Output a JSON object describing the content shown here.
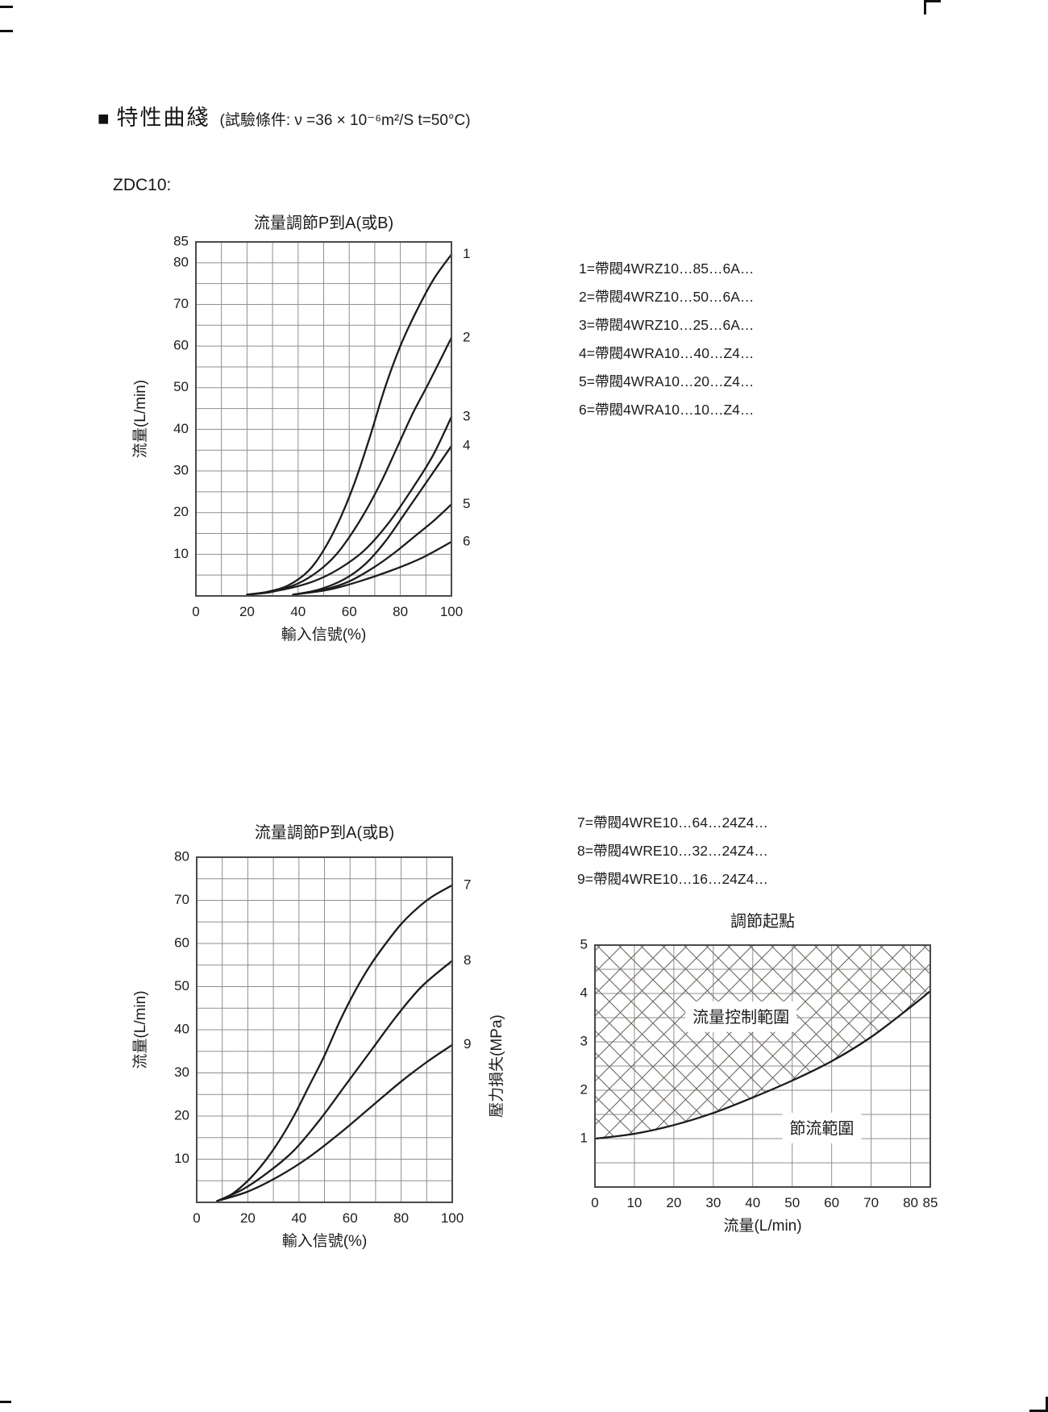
{
  "page": {
    "header": {
      "marker": "■",
      "title": "特性曲綫",
      "condition": "(試驗條件: ν =36 × 10⁻⁶m²/S   t=50°C)"
    },
    "model_label": "ZDC10:"
  },
  "colors": {
    "curve": "#1c1c1c",
    "grid": "#8f8f8f",
    "axis": "#4a4a4a",
    "hatch": "#6e665e",
    "annotation_bg": "#ffffff"
  },
  "legends": {
    "group1": [
      "1=帶閥4WRZ10…85…6A…",
      "2=帶閥4WRZ10…50…6A…",
      "3=帶閥4WRZ10…25…6A…",
      "4=帶閥4WRA10…40…Z4…",
      "5=帶閥4WRA10…20…Z4…",
      "6=帶閥4WRA10…10…Z4…"
    ],
    "group2": [
      "7=帶閥4WRE10…64…24Z4…",
      "8=帶閥4WRE10…32…24Z4…",
      "9=帶閥4WRE10…16…24Z4…"
    ]
  },
  "chart_data": [
    {
      "id": "flow-adjust-1",
      "type": "line",
      "title": "流量調節P到A(或B)",
      "xlabel": "輸入信號(%)",
      "ylabel": "流量(L/min)",
      "xlim": [
        0,
        100
      ],
      "ylim": [
        0,
        85
      ],
      "x_ticks": [
        0,
        20,
        40,
        60,
        80,
        100
      ],
      "y_ticks": [
        10,
        20,
        30,
        40,
        50,
        60,
        70,
        80,
        85
      ],
      "x_grid_step": 10,
      "y_grid_step": 5,
      "grid": true,
      "series": [
        {
          "name": "1",
          "values": [
            [
              20,
              0.3
            ],
            [
              28,
              1
            ],
            [
              36,
              2.5
            ],
            [
              44,
              6
            ],
            [
              50,
              11
            ],
            [
              56,
              18
            ],
            [
              62,
              27
            ],
            [
              68,
              38
            ],
            [
              74,
              50
            ],
            [
              80,
              60
            ],
            [
              86,
              68
            ],
            [
              93,
              76
            ],
            [
              100,
              82
            ]
          ]
        },
        {
          "name": "2",
          "values": [
            [
              20,
              0.3
            ],
            [
              30,
              1
            ],
            [
              40,
              3
            ],
            [
              48,
              6
            ],
            [
              55,
              10
            ],
            [
              61,
              15
            ],
            [
              67,
              21
            ],
            [
              73,
              28
            ],
            [
              79,
              36
            ],
            [
              85,
              44
            ],
            [
              91,
              51
            ],
            [
              100,
              62
            ]
          ]
        },
        {
          "name": "3",
          "values": [
            [
              20,
              0.3
            ],
            [
              34,
              1.5
            ],
            [
              46,
              3.5
            ],
            [
              56,
              6.5
            ],
            [
              66,
              11
            ],
            [
              76,
              18
            ],
            [
              86,
              27
            ],
            [
              93,
              34
            ],
            [
              100,
              43
            ]
          ]
        },
        {
          "name": "4",
          "values": [
            [
              38,
              0.3
            ],
            [
              48,
              1.5
            ],
            [
              58,
              4
            ],
            [
              66,
              7.5
            ],
            [
              74,
              13
            ],
            [
              82,
              20
            ],
            [
              91,
              28
            ],
            [
              100,
              36
            ]
          ]
        },
        {
          "name": "5",
          "values": [
            [
              38,
              0.3
            ],
            [
              50,
              1.5
            ],
            [
              60,
              3.5
            ],
            [
              70,
              7
            ],
            [
              78,
              10.5
            ],
            [
              86,
              14.5
            ],
            [
              93,
              18
            ],
            [
              100,
              22
            ]
          ]
        },
        {
          "name": "6",
          "values": [
            [
              38,
              0.3
            ],
            [
              52,
              1.5
            ],
            [
              64,
              3.5
            ],
            [
              76,
              6
            ],
            [
              88,
              9
            ],
            [
              100,
              13
            ]
          ]
        }
      ]
    },
    {
      "id": "flow-adjust-2",
      "type": "line",
      "title": "流量調節P到A(或B)",
      "xlabel": "輸入信號(%)",
      "ylabel": "流量(L/min)",
      "xlim": [
        0,
        100
      ],
      "ylim": [
        0,
        80
      ],
      "x_ticks": [
        0,
        20,
        40,
        60,
        80,
        100
      ],
      "y_ticks": [
        10,
        20,
        30,
        40,
        50,
        60,
        70,
        80
      ],
      "x_grid_step": 10,
      "y_grid_step": 5,
      "grid": true,
      "series": [
        {
          "name": "7",
          "values": [
            [
              8,
              0.3
            ],
            [
              14,
              2
            ],
            [
              20,
              5
            ],
            [
              26,
              9
            ],
            [
              32,
              14
            ],
            [
              38,
              20
            ],
            [
              44,
              27
            ],
            [
              50,
              34
            ],
            [
              56,
              42
            ],
            [
              62,
              49
            ],
            [
              68,
              55
            ],
            [
              74,
              60
            ],
            [
              80,
              64.5
            ],
            [
              86,
              68
            ],
            [
              92,
              70.8
            ],
            [
              100,
              73.5
            ]
          ]
        },
        {
          "name": "8",
          "values": [
            [
              8,
              0.3
            ],
            [
              18,
              3
            ],
            [
              28,
              7
            ],
            [
              38,
              12
            ],
            [
              48,
              19
            ],
            [
              58,
              27
            ],
            [
              68,
              35
            ],
            [
              78,
              43
            ],
            [
              88,
              50
            ],
            [
              100,
              56
            ]
          ]
        },
        {
          "name": "9",
          "values": [
            [
              8,
              0.3
            ],
            [
              20,
              2.5
            ],
            [
              32,
              6
            ],
            [
              44,
              10.5
            ],
            [
              56,
              16
            ],
            [
              68,
              22
            ],
            [
              80,
              28
            ],
            [
              90,
              32.5
            ],
            [
              100,
              36.5
            ]
          ]
        }
      ]
    },
    {
      "id": "adjust-start",
      "type": "area",
      "title": "調節起點",
      "xlabel": "流量(L/min)",
      "ylabel": "壓力損失(MPa)",
      "xlim": [
        0,
        85
      ],
      "ylim": [
        0,
        5
      ],
      "x_ticks": [
        0,
        10,
        20,
        30,
        40,
        50,
        60,
        70,
        80,
        85
      ],
      "y_ticks": [
        1,
        2,
        3,
        4,
        5
      ],
      "x_grid_step": 10,
      "y_grid_step": 0.5,
      "grid": true,
      "hatch_region": "above-curve",
      "series": [
        {
          "name": "",
          "show_label": false,
          "values": [
            [
              0,
              1
            ],
            [
              10,
              1.1
            ],
            [
              20,
              1.28
            ],
            [
              30,
              1.53
            ],
            [
              40,
              1.85
            ],
            [
              50,
              2.2
            ],
            [
              60,
              2.6
            ],
            [
              70,
              3.1
            ],
            [
              80,
              3.72
            ],
            [
              85,
              4.05
            ]
          ]
        }
      ],
      "annotations": [
        {
          "text": "流量控制範圍",
          "x": 37,
          "y": 3.52
        },
        {
          "text": "節流範圍",
          "x": 57.5,
          "y": 1.22
        }
      ]
    }
  ]
}
